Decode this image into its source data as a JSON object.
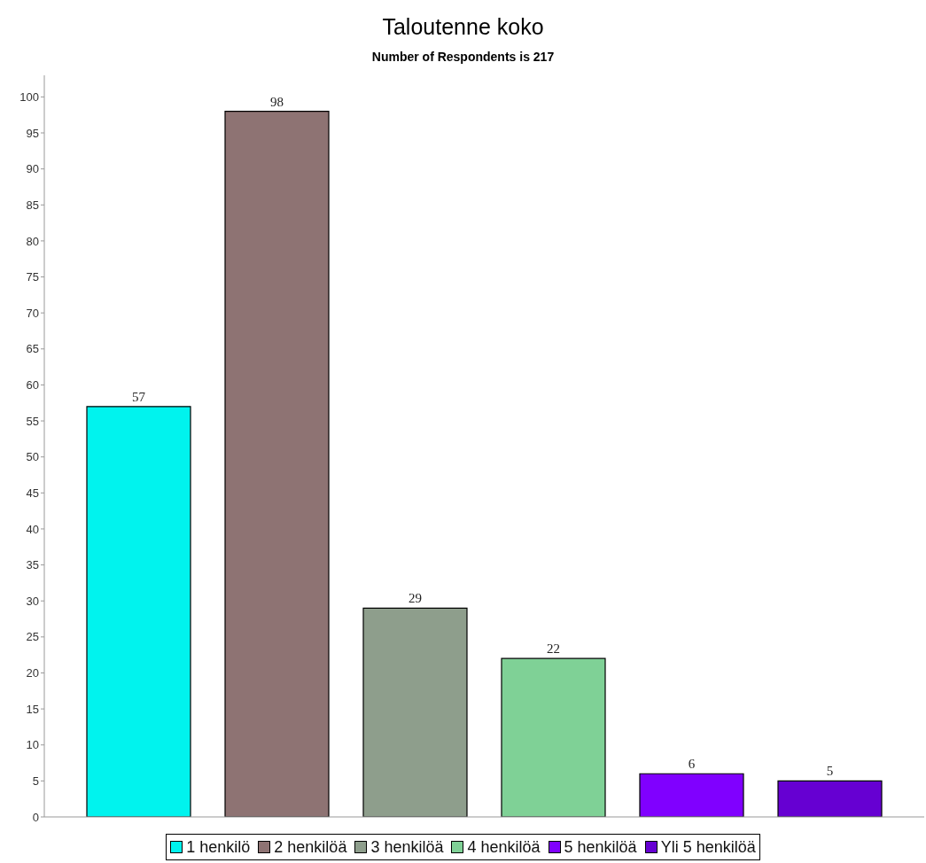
{
  "chart_data": {
    "type": "bar",
    "title": "Taloutenne koko",
    "subtitle": "Number of Respondents is 217",
    "categories": [
      null
    ],
    "series": [
      {
        "name": "1 henkilö",
        "color": "#00f3ee",
        "values": [
          57
        ]
      },
      {
        "name": "2 henkilöä",
        "color": "#8e7373",
        "values": [
          98
        ]
      },
      {
        "name": "3 henkilöä",
        "color": "#8e9e8c",
        "values": [
          29
        ]
      },
      {
        "name": "4 henkilöä",
        "color": "#7fd196",
        "values": [
          22
        ]
      },
      {
        "name": "5 henkilöä",
        "color": "#8000ff",
        "values": [
          6
        ]
      },
      {
        "name": "Yli 5 henkilöä",
        "color": "#6600d2",
        "values": [
          5
        ]
      }
    ],
    "ylim": [
      0,
      103
    ],
    "yticks": [
      0,
      5,
      10,
      15,
      20,
      25,
      30,
      35,
      40,
      45,
      50,
      55,
      60,
      65,
      70,
      75,
      80,
      85,
      90,
      95,
      100
    ],
    "data_labels": true,
    "legend": "bottom",
    "tick_labels": "y",
    "grid": false
  }
}
